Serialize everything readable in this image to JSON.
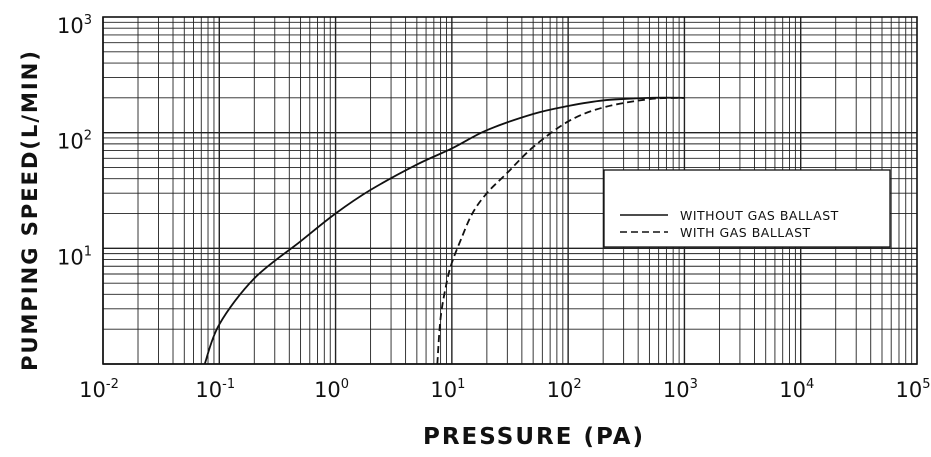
{
  "chart_data": {
    "type": "line",
    "xlabel": "PRESSURE (PA)",
    "ylabel": "PUMPING SPEED(L/MIN)",
    "xscale": "log",
    "yscale": "log",
    "xlim": [
      0.01,
      100000
    ],
    "ylim": [
      1,
      1000
    ],
    "grid": true,
    "legend_position": "right",
    "x_ticks": [
      {
        "base": "10",
        "exp": "-2"
      },
      {
        "base": "10",
        "exp": "-1"
      },
      {
        "base": "10",
        "exp": "0"
      },
      {
        "base": "10",
        "exp": "1"
      },
      {
        "base": "10",
        "exp": "2"
      },
      {
        "base": "10",
        "exp": "3"
      },
      {
        "base": "10",
        "exp": "4"
      },
      {
        "base": "10",
        "exp": "5"
      }
    ],
    "y_ticks": [
      {
        "base": "10",
        "exp": "1"
      },
      {
        "base": "10",
        "exp": "2"
      },
      {
        "base": "10",
        "exp": "3"
      }
    ],
    "series": [
      {
        "name": "WITHOUT GAS BALLAST",
        "style": "solid",
        "x": [
          0.075,
          0.1,
          0.2,
          0.5,
          1,
          2,
          5,
          10,
          20,
          50,
          100,
          200,
          500,
          1000
        ],
        "y": [
          1,
          2.2,
          5.5,
          11.5,
          20,
          32,
          53,
          73,
          105,
          145,
          170,
          190,
          200,
          200
        ]
      },
      {
        "name": "WITH GAS BALLAST",
        "style": "dashed",
        "x": [
          7.5,
          8,
          9,
          10,
          12,
          15,
          20,
          30,
          50,
          100,
          200,
          500,
          1000
        ],
        "y": [
          1,
          2.5,
          5,
          7.5,
          12,
          20,
          30,
          45,
          75,
          125,
          165,
          195,
          200
        ]
      }
    ],
    "colors": {
      "line": "#111111",
      "grid": "#222222",
      "background": "#ffffff"
    }
  }
}
